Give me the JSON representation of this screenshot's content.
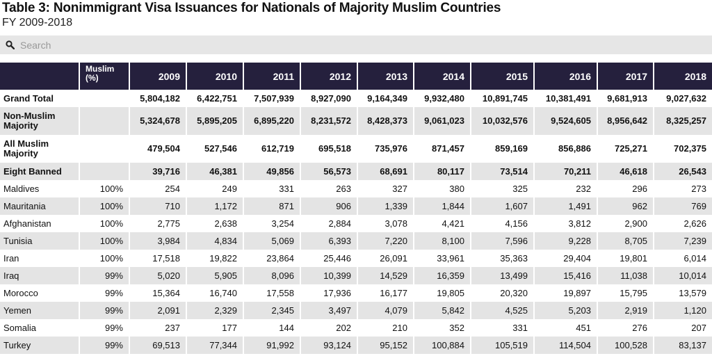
{
  "title": "Table 3: Nonimmigrant Visa Issuances for Nationals of Majority Muslim Countries",
  "subtitle": "FY 2009-2018",
  "search": {
    "placeholder": "Search",
    "icon": "search-icon"
  },
  "columns": [
    "",
    "Muslim (%)",
    "2009",
    "2010",
    "2011",
    "2012",
    "2013",
    "2014",
    "2015",
    "2016",
    "2017",
    "2018"
  ],
  "rows": [
    {
      "label": "Grand Total",
      "pct": "",
      "values": [
        "5,804,182",
        "6,422,751",
        "7,507,939",
        "8,927,090",
        "9,164,349",
        "9,932,480",
        "10,891,745",
        "10,381,491",
        "9,681,913",
        "9,027,632"
      ]
    },
    {
      "label": "Non-Muslim Majority",
      "pct": "",
      "values": [
        "5,324,678",
        "5,895,205",
        "6,895,220",
        "8,231,572",
        "8,428,373",
        "9,061,023",
        "10,032,576",
        "9,524,605",
        "8,956,642",
        "8,325,257"
      ]
    },
    {
      "label": "All Muslim Majority",
      "pct": "",
      "values": [
        "479,504",
        "527,546",
        "612,719",
        "695,518",
        "735,976",
        "871,457",
        "859,169",
        "856,886",
        "725,271",
        "702,375"
      ]
    },
    {
      "label": "Eight Banned",
      "pct": "",
      "values": [
        "39,716",
        "46,381",
        "49,856",
        "56,573",
        "68,691",
        "80,117",
        "73,514",
        "70,211",
        "46,618",
        "26,543"
      ]
    },
    {
      "label": "Maldives",
      "pct": "100%",
      "values": [
        "254",
        "249",
        "331",
        "263",
        "327",
        "380",
        "325",
        "232",
        "296",
        "273"
      ]
    },
    {
      "label": "Mauritania",
      "pct": "100%",
      "values": [
        "710",
        "1,172",
        "871",
        "906",
        "1,339",
        "1,844",
        "1,607",
        "1,491",
        "962",
        "769"
      ]
    },
    {
      "label": "Afghanistan",
      "pct": "100%",
      "values": [
        "2,775",
        "2,638",
        "3,254",
        "2,884",
        "3,078",
        "4,421",
        "4,156",
        "3,812",
        "2,900",
        "2,626"
      ]
    },
    {
      "label": "Tunisia",
      "pct": "100%",
      "values": [
        "3,984",
        "4,834",
        "5,069",
        "6,393",
        "7,220",
        "8,100",
        "7,596",
        "9,228",
        "8,705",
        "7,239"
      ]
    },
    {
      "label": "Iran",
      "pct": "100%",
      "values": [
        "17,518",
        "19,822",
        "23,864",
        "25,446",
        "26,091",
        "33,961",
        "35,363",
        "29,404",
        "19,801",
        "6,014"
      ]
    },
    {
      "label": "Iraq",
      "pct": "99%",
      "values": [
        "5,020",
        "5,905",
        "8,096",
        "10,399",
        "14,529",
        "16,359",
        "13,499",
        "15,416",
        "11,038",
        "10,014"
      ]
    },
    {
      "label": "Morocco",
      "pct": "99%",
      "values": [
        "15,364",
        "16,740",
        "17,558",
        "17,936",
        "16,177",
        "19,805",
        "20,320",
        "19,897",
        "15,795",
        "13,579"
      ]
    },
    {
      "label": "Yemen",
      "pct": "99%",
      "values": [
        "2,091",
        "2,329",
        "2,345",
        "3,497",
        "4,079",
        "5,842",
        "4,525",
        "5,203",
        "2,919",
        "1,120"
      ]
    },
    {
      "label": "Somalia",
      "pct": "99%",
      "values": [
        "237",
        "177",
        "144",
        "202",
        "210",
        "352",
        "331",
        "451",
        "276",
        "207"
      ]
    },
    {
      "label": "Turkey",
      "pct": "99%",
      "values": [
        "69,513",
        "77,344",
        "91,992",
        "93,124",
        "95,152",
        "100,884",
        "105,519",
        "114,504",
        "100,528",
        "83,137"
      ]
    }
  ],
  "colors": {
    "header_bg": "#25203d",
    "stripe": "#e4e4e4",
    "search_bg": "#e6e6e6"
  }
}
